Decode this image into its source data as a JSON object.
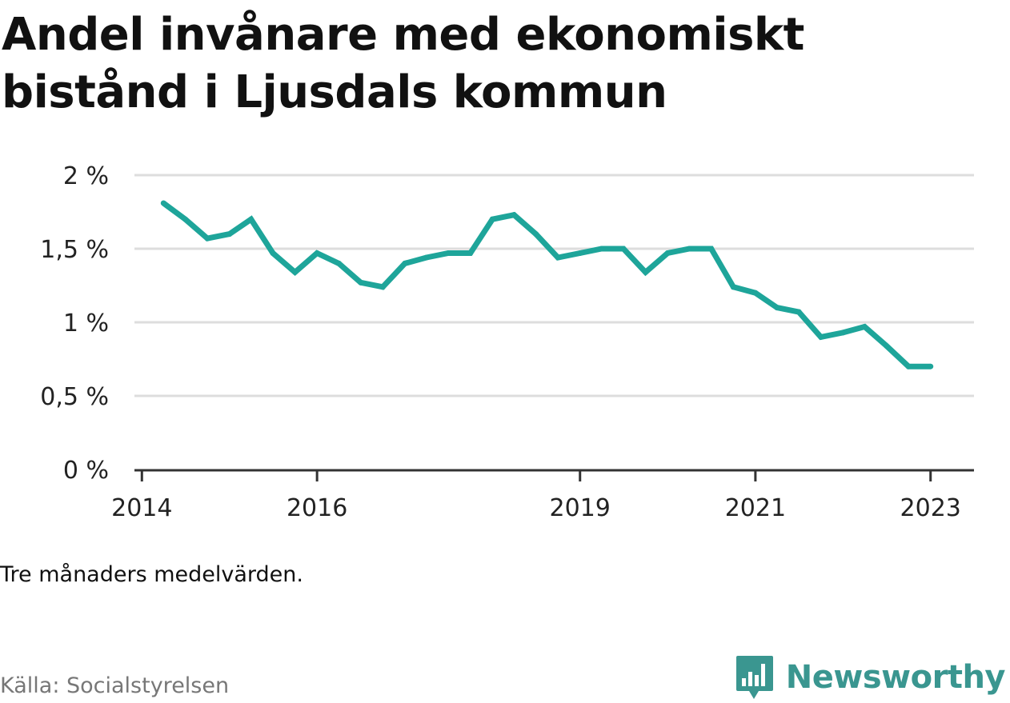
{
  "title": "Andel invånare med ekonomiskt bistånd i Ljusdals kommun",
  "note": "Tre månaders medelvärden.",
  "source": "Källa: Socialstyrelsen",
  "brand": {
    "name": "Newsworthy",
    "color": "#3a9690",
    "icon": "newsworthy-logo-icon"
  },
  "chart_data": {
    "type": "line",
    "title": "Andel invånare med ekonomiskt bistånd i Ljusdals kommun",
    "xlabel": "",
    "ylabel": "",
    "ylim": [
      0,
      2
    ],
    "yticks": [
      0,
      0.5,
      1,
      1.5,
      2
    ],
    "ytick_labels": [
      "0 %",
      "0,5 %",
      "1 %",
      "1,5 %",
      "2 %"
    ],
    "xlim": [
      "2013-12-01",
      "2023-07-01"
    ],
    "xticks": [
      "2014-01-01",
      "2016-01-01",
      "2019-01-01",
      "2021-01-01",
      "2023-01-01"
    ],
    "xtick_labels": [
      "2014",
      "2016",
      "2019",
      "2021",
      "2023"
    ],
    "grid": true,
    "line_color": "#1ea59a",
    "series": [
      {
        "x": [
          "2014-04-01",
          "2014-07-01",
          "2014-10-01",
          "2015-01-01",
          "2015-04-01",
          "2015-07-01",
          "2015-10-01",
          "2016-01-01",
          "2016-04-01",
          "2016-07-01",
          "2016-10-01",
          "2017-01-01",
          "2017-04-01",
          "2017-07-01",
          "2017-10-01",
          "2018-01-01",
          "2018-04-01",
          "2018-07-01",
          "2018-10-01",
          "2019-01-01",
          "2019-04-01",
          "2019-07-01",
          "2019-10-01",
          "2020-01-01",
          "2020-04-01",
          "2020-07-01",
          "2020-10-01",
          "2021-01-01",
          "2021-04-01",
          "2021-07-01",
          "2021-10-01",
          "2022-01-01",
          "2022-04-01",
          "2022-07-01",
          "2022-10-01",
          "2023-01-01"
        ],
        "values": [
          1.81,
          1.7,
          1.57,
          1.6,
          1.7,
          1.47,
          1.34,
          1.47,
          1.4,
          1.27,
          1.24,
          1.4,
          1.44,
          1.47,
          1.47,
          1.7,
          1.73,
          1.6,
          1.44,
          1.47,
          1.5,
          1.5,
          1.34,
          1.47,
          1.5,
          1.5,
          1.24,
          1.2,
          1.1,
          1.07,
          0.9,
          0.93,
          0.97,
          0.84,
          0.7,
          0.7
        ]
      }
    ]
  }
}
